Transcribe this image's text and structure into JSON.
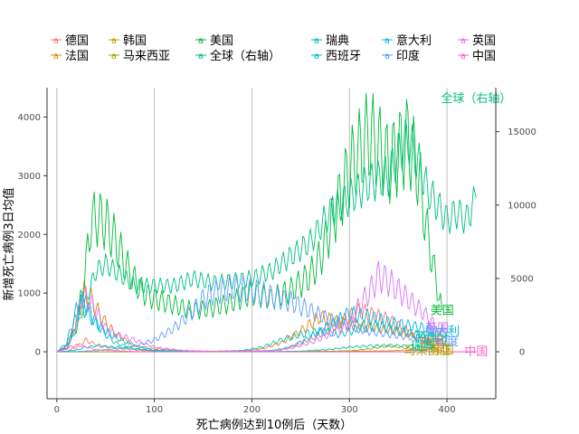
{
  "chart_data": {
    "type": "line",
    "xlabel": "死亡病例达到10例后（天数）",
    "ylabel": "新增死亡病例3日均值",
    "xlim": [
      -10,
      450
    ],
    "ylim": [
      -800,
      4500
    ],
    "ylim_right": [
      -3200,
      18000
    ],
    "x_ticks": [
      0,
      100,
      200,
      300,
      400
    ],
    "y_ticks_left": [
      0,
      1000,
      2000,
      3000,
      4000
    ],
    "y_ticks_right": [
      0,
      5000,
      10000,
      15000
    ],
    "grid": "vertical",
    "legend_position": "top",
    "series": [
      {
        "name": "德国",
        "color": "#F8766D",
        "end_label": "德国",
        "x": [
          0,
          10,
          20,
          30,
          40,
          60,
          90,
          120,
          150,
          180,
          210,
          230,
          250,
          270,
          290,
          310,
          330,
          340,
          350,
          360,
          370,
          380,
          385
        ],
        "y": [
          0,
          10,
          80,
          200,
          120,
          60,
          20,
          5,
          3,
          5,
          10,
          30,
          150,
          300,
          500,
          700,
          600,
          550,
          450,
          350,
          200,
          150,
          130
        ]
      },
      {
        "name": "法国",
        "color": "#E58700",
        "end_label": "法国",
        "x": [
          0,
          10,
          20,
          28,
          35,
          45,
          60,
          80,
          100,
          130,
          160,
          190,
          210,
          230,
          250,
          270,
          290,
          310,
          330,
          350,
          370,
          385
        ],
        "y": [
          0,
          60,
          500,
          1000,
          900,
          600,
          300,
          100,
          50,
          20,
          10,
          20,
          50,
          150,
          350,
          600,
          500,
          450,
          400,
          350,
          250,
          200
        ]
      },
      {
        "name": "韩国",
        "color": "#C99800",
        "end_label": "韩国",
        "x": [
          0,
          50,
          100,
          150,
          200,
          250,
          300,
          340,
          360,
          380,
          395
        ],
        "y": [
          0,
          2,
          3,
          2,
          3,
          5,
          10,
          15,
          30,
          40,
          35
        ]
      },
      {
        "name": "马来西亚",
        "color": "#A3A500",
        "end_label": "马来西亚",
        "x": [
          0,
          50,
          100,
          150,
          200,
          250,
          300,
          320,
          340,
          360,
          380
        ],
        "y": [
          0,
          1,
          1,
          2,
          3,
          5,
          15,
          50,
          100,
          60,
          20
        ]
      },
      {
        "name": "美国",
        "color": "#00BA38",
        "end_label": "美国",
        "x": [
          0,
          10,
          20,
          30,
          35,
          40,
          50,
          60,
          70,
          80,
          90,
          100,
          120,
          140,
          160,
          180,
          200,
          220,
          240,
          260,
          270,
          280,
          290,
          300,
          310,
          320,
          330,
          340,
          350,
          360,
          370,
          380,
          390,
          395
        ],
        "y": [
          0,
          100,
          400,
          1500,
          2200,
          2300,
          2200,
          1900,
          1500,
          1200,
          1000,
          900,
          800,
          700,
          750,
          850,
          1000,
          900,
          1050,
          1300,
          1600,
          2100,
          2600,
          3100,
          3400,
          3700,
          3500,
          3200,
          3400,
          3600,
          3100,
          2000,
          1100,
          700
        ]
      },
      {
        "name": "全球（右轴）",
        "color": "#00BF7D",
        "end_label": "全球（右轴）",
        "x": [
          0,
          10,
          20,
          30,
          40,
          50,
          60,
          70,
          80,
          100,
          120,
          140,
          160,
          180,
          200,
          220,
          240,
          260,
          280,
          300,
          320,
          340,
          350,
          360,
          370,
          380,
          390,
          400,
          410,
          420,
          430
        ],
        "y": [
          0,
          200,
          1500,
          3500,
          5500,
          6000,
          5500,
          5000,
          4500,
          4500,
          4500,
          5000,
          4700,
          4800,
          5000,
          5500,
          6500,
          7500,
          9500,
          10500,
          11500,
          12000,
          13500,
          14500,
          13000,
          11000,
          10000,
          9000,
          9500,
          9000,
          10500
        ]
      },
      {
        "name": "瑞典",
        "color": "#00C1A3",
        "end_label": "瑞典",
        "x": [
          0,
          10,
          20,
          30,
          40,
          60,
          80,
          100,
          140,
          180,
          220,
          250,
          280,
          300,
          320,
          340,
          360,
          375
        ],
        "y": [
          0,
          10,
          30,
          80,
          100,
          80,
          50,
          20,
          5,
          2,
          3,
          10,
          40,
          80,
          100,
          110,
          100,
          90
        ]
      },
      {
        "name": "西班牙",
        "color": "#00BFC4",
        "end_label": "西班牙",
        "x": [
          0,
          10,
          20,
          25,
          30,
          40,
          50,
          60,
          80,
          100,
          130,
          160,
          190,
          210,
          230,
          250,
          270,
          290,
          310,
          330,
          350,
          370,
          385
        ],
        "y": [
          0,
          150,
          700,
          850,
          800,
          500,
          300,
          150,
          50,
          20,
          10,
          5,
          20,
          80,
          200,
          300,
          350,
          300,
          400,
          450,
          350,
          300,
          250
        ]
      },
      {
        "name": "意大利",
        "color": "#00B9E3",
        "end_label": "意大利",
        "x": [
          0,
          10,
          20,
          25,
          30,
          40,
          50,
          60,
          80,
          100,
          130,
          160,
          190,
          220,
          240,
          260,
          280,
          300,
          320,
          340,
          360,
          380,
          395
        ],
        "y": [
          0,
          100,
          600,
          800,
          700,
          500,
          350,
          250,
          100,
          30,
          10,
          5,
          10,
          20,
          80,
          250,
          450,
          650,
          600,
          500,
          450,
          400,
          350
        ]
      },
      {
        "name": "印度",
        "color": "#619CFF",
        "end_label": "印度",
        "x": [
          0,
          20,
          40,
          60,
          80,
          100,
          120,
          140,
          150,
          160,
          170,
          180,
          200,
          220,
          240,
          260,
          280,
          300,
          320,
          340,
          360,
          380,
          390,
          400
        ],
        "y": [
          0,
          5,
          20,
          50,
          100,
          200,
          400,
          700,
          900,
          1000,
          1050,
          1100,
          1050,
          950,
          850,
          700,
          550,
          450,
          350,
          300,
          250,
          200,
          180,
          170
        ]
      },
      {
        "name": "英国",
        "color": "#DB72FB",
        "end_label": "英国",
        "x": [
          0,
          10,
          20,
          25,
          30,
          40,
          50,
          60,
          80,
          100,
          130,
          160,
          190,
          220,
          240,
          260,
          280,
          300,
          310,
          320,
          330,
          340,
          360,
          380,
          390
        ],
        "y": [
          0,
          100,
          500,
          900,
          950,
          700,
          400,
          300,
          200,
          80,
          20,
          5,
          10,
          20,
          60,
          150,
          300,
          450,
          800,
          1000,
          1300,
          1200,
          900,
          600,
          400
        ]
      },
      {
        "name": "中国",
        "color": "#FF61C3",
        "end_label": "中国",
        "x": [
          0,
          5,
          10,
          15,
          20,
          25,
          30,
          40,
          50,
          60,
          70,
          80,
          90,
          120,
          160,
          200,
          250,
          300,
          350,
          400,
          430
        ],
        "y": [
          0,
          20,
          50,
          90,
          110,
          100,
          80,
          40,
          30,
          20,
          10,
          5,
          2,
          0,
          0,
          0,
          0,
          0,
          0,
          0,
          0
        ]
      }
    ]
  }
}
